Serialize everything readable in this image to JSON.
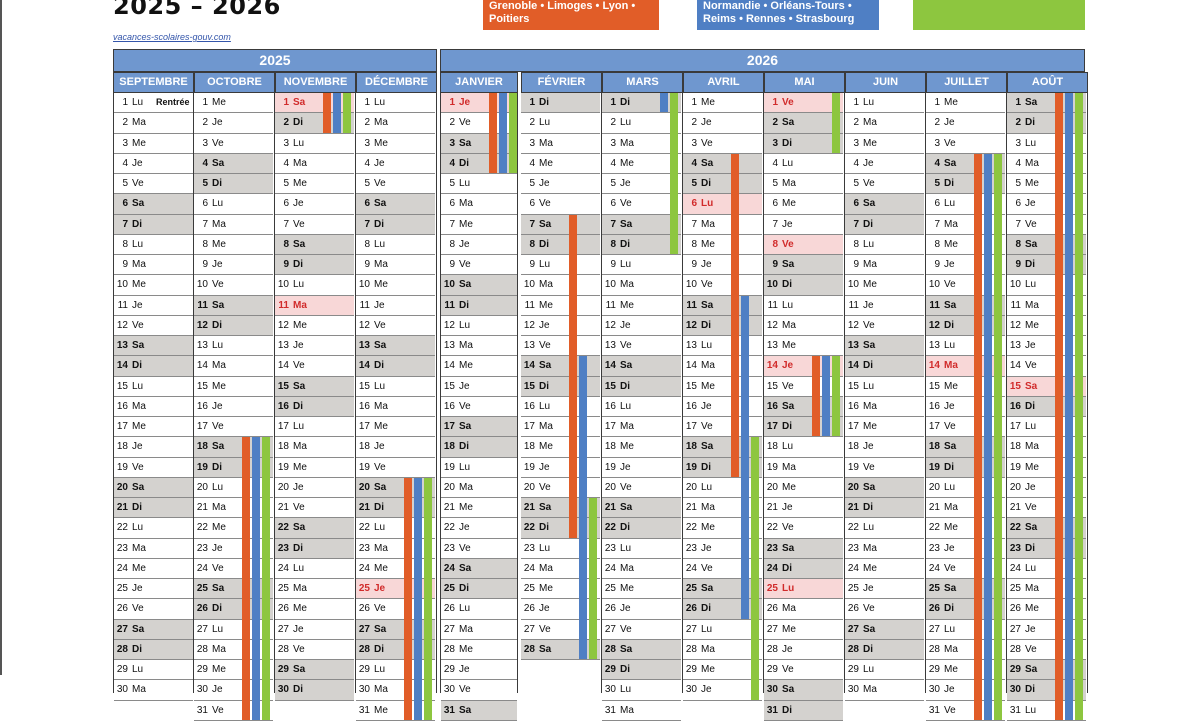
{
  "title": "2025 – 2026",
  "source_link": "vacances-scolaires-gouv.com",
  "legend": {
    "zone_a": {
      "color": "#e15d28",
      "lines": [
        "Grenoble • Limoges • Lyon •",
        "Poitiers"
      ]
    },
    "zone_b": {
      "color": "#4f7fc4",
      "lines": [
        "Normandie • Orléans-Tours •",
        "Reims • Rennes • Strasbourg"
      ]
    },
    "zone_c": {
      "color": "#8dc63f",
      "lines": [
        "",
        ""
      ]
    }
  },
  "colors": {
    "header": "#6f97cf",
    "weekend": "#d4d2cf",
    "holiday_bg": "#f8d7d7",
    "holiday_text": "#d12b2b"
  },
  "years": [
    "2025",
    "2026"
  ],
  "months": [
    {
      "name": "SEPTEMBRE",
      "start": "Lu",
      "notes": {
        "1": "Rentrée"
      }
    },
    {
      "name": "OCTOBRE",
      "start": "Me"
    },
    {
      "name": "NOVEMBRE",
      "start": "Sa",
      "holidays": [
        1,
        11
      ]
    },
    {
      "name": "DÉCEMBRE",
      "start": "Lu",
      "holidays": [
        25
      ]
    },
    {
      "name": "JANVIER",
      "start": "Je",
      "holidays": [
        1
      ]
    },
    {
      "name": "FÉVRIER",
      "start": "Di"
    },
    {
      "name": "MARS",
      "start": "Di"
    },
    {
      "name": "AVRIL",
      "start": "Me",
      "holidays": [
        6
      ]
    },
    {
      "name": "MAI",
      "start": "Ve",
      "holidays": [
        1,
        8,
        14,
        25
      ]
    },
    {
      "name": "JUIN",
      "start": "Lu"
    },
    {
      "name": "JUILLET",
      "start": "Me",
      "holidays": [
        14
      ]
    },
    {
      "name": "AOÛT",
      "start": "Sa",
      "holidays": [
        15
      ]
    }
  ],
  "vacations": {
    "OCTOBRE": [
      {
        "zone": "a",
        "from": 18,
        "to": 31
      },
      {
        "zone": "b",
        "from": 18,
        "to": 31
      },
      {
        "zone": "c",
        "from": 18,
        "to": 31
      }
    ],
    "NOVEMBRE": [
      {
        "zone": "a",
        "from": 1,
        "to": 2
      },
      {
        "zone": "b",
        "from": 1,
        "to": 2
      },
      {
        "zone": "c",
        "from": 1,
        "to": 2
      }
    ],
    "DÉCEMBRE": [
      {
        "zone": "a",
        "from": 20,
        "to": 31
      },
      {
        "zone": "b",
        "from": 20,
        "to": 31
      },
      {
        "zone": "c",
        "from": 20,
        "to": 31
      }
    ],
    "JANVIER": [
      {
        "zone": "a",
        "from": 1,
        "to": 4
      },
      {
        "zone": "b",
        "from": 1,
        "to": 4
      },
      {
        "zone": "c",
        "from": 1,
        "to": 4
      }
    ],
    "FÉVRIER": [
      {
        "zone": "a",
        "from": 7,
        "to": 22
      },
      {
        "zone": "b",
        "from": 14,
        "to": 28
      },
      {
        "zone": "c",
        "from": 21,
        "to": 28
      }
    ],
    "MARS": [
      {
        "zone": "b",
        "from": 1,
        "to": 1
      },
      {
        "zone": "c",
        "from": 1,
        "to": 8
      }
    ],
    "AVRIL": [
      {
        "zone": "a",
        "from": 4,
        "to": 19
      },
      {
        "zone": "b",
        "from": 11,
        "to": 26
      },
      {
        "zone": "c",
        "from": 18,
        "to": 30
      }
    ],
    "MAI": [
      {
        "zone": "c",
        "from": 1,
        "to": 3
      },
      {
        "zone": "a",
        "from": 14,
        "to": 17
      },
      {
        "zone": "b",
        "from": 14,
        "to": 17
      },
      {
        "zone": "c",
        "from": 14,
        "to": 17
      }
    ],
    "JUILLET": [
      {
        "zone": "a",
        "from": 4,
        "to": 31
      },
      {
        "zone": "b",
        "from": 4,
        "to": 31
      },
      {
        "zone": "c",
        "from": 4,
        "to": 31
      }
    ],
    "AOÛT": [
      {
        "zone": "a",
        "from": 1,
        "to": 31
      },
      {
        "zone": "b",
        "from": 1,
        "to": 31
      },
      {
        "zone": "c",
        "from": 1,
        "to": 31
      }
    ]
  }
}
